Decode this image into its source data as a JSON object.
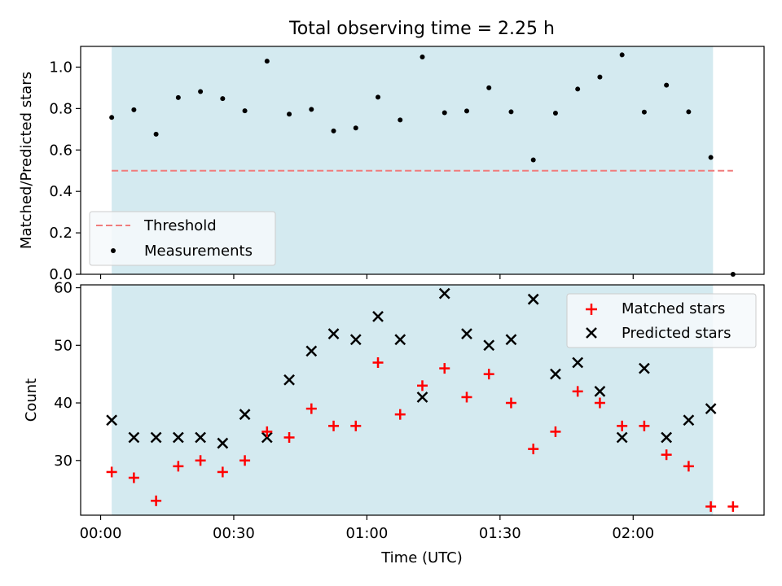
{
  "title": "Total observing time = 2.25 h",
  "colors": {
    "band": "#d4eaf0",
    "threshold": "#f07c7c",
    "matched": "#ff0000",
    "predicted": "#000000",
    "measurement": "#000000"
  },
  "chart_data": [
    {
      "type": "scatter",
      "panel": "top",
      "ylabel": "Matched/Predicted stars",
      "ylim": [
        0.0,
        1.1
      ],
      "yticks": [
        0.0,
        0.2,
        0.4,
        0.6,
        0.8,
        1.0
      ],
      "ytick_labels": [
        "0.0",
        "0.2",
        "0.4",
        "0.6",
        "0.8",
        "1.0"
      ],
      "x_unit": "minutes since 00:00 UTC",
      "xlim": [
        -4.5,
        149.5
      ],
      "shaded_span": [
        2.5,
        138
      ],
      "threshold": {
        "name": "Threshold",
        "value": 0.5,
        "x_range": [
          2.5,
          142.5
        ]
      },
      "series": [
        {
          "name": "Measurements",
          "x": [
            2.5,
            7.5,
            12.5,
            17.5,
            22.5,
            27.5,
            32.5,
            37.5,
            42.5,
            47.5,
            52.5,
            57.5,
            62.5,
            67.5,
            72.5,
            77.5,
            82.5,
            87.5,
            92.5,
            97.5,
            102.5,
            107.5,
            112.5,
            117.5,
            122.5,
            127.5,
            132.5,
            137.5,
            142.5
          ],
          "values": [
            0.757,
            0.794,
            0.676,
            0.853,
            0.882,
            0.848,
            0.789,
            1.029,
            0.773,
            0.796,
            0.692,
            0.706,
            0.855,
            0.745,
            1.049,
            0.78,
            0.788,
            0.9,
            0.784,
            0.552,
            0.778,
            0.894,
            0.952,
            1.059,
            0.783,
            0.913,
            0.784,
            0.564,
            0.0
          ]
        }
      ],
      "legend": {
        "placement": "lower-left",
        "entries": [
          "Threshold",
          "Measurements"
        ]
      }
    },
    {
      "type": "scatter",
      "panel": "bottom",
      "ylabel": "Count",
      "xlabel": "Time (UTC)",
      "ylim": [
        20.5,
        60.5
      ],
      "yticks": [
        30,
        40,
        50,
        60
      ],
      "ytick_labels": [
        "30",
        "40",
        "50",
        "60"
      ],
      "xlim": [
        -4.5,
        149.5
      ],
      "xticks": [
        0,
        30,
        60,
        90,
        120
      ],
      "xtick_labels": [
        "00:00",
        "00:30",
        "01:00",
        "01:30",
        "02:00"
      ],
      "shaded_span": [
        2.5,
        138
      ],
      "series": [
        {
          "name": "Matched stars",
          "marker": "+",
          "x": [
            2.5,
            7.5,
            12.5,
            17.5,
            22.5,
            27.5,
            32.5,
            37.5,
            42.5,
            47.5,
            52.5,
            57.5,
            62.5,
            67.5,
            72.5,
            77.5,
            82.5,
            87.5,
            92.5,
            97.5,
            102.5,
            107.5,
            112.5,
            117.5,
            122.5,
            127.5,
            132.5,
            137.5,
            142.5
          ],
          "values": [
            28,
            27,
            23,
            29,
            30,
            28,
            30,
            35,
            34,
            39,
            36,
            36,
            47,
            38,
            43,
            46,
            41,
            45,
            40,
            32,
            35,
            42,
            40,
            36,
            36,
            31,
            29,
            22,
            22
          ]
        },
        {
          "name": "Predicted stars",
          "marker": "x",
          "x": [
            2.5,
            7.5,
            12.5,
            17.5,
            22.5,
            27.5,
            32.5,
            37.5,
            42.5,
            47.5,
            52.5,
            57.5,
            62.5,
            67.5,
            72.5,
            77.5,
            82.5,
            87.5,
            92.5,
            97.5,
            102.5,
            107.5,
            112.5,
            117.5,
            122.5,
            127.5,
            132.5,
            137.5
          ],
          "values": [
            37,
            34,
            34,
            34,
            34,
            33,
            38,
            34,
            44,
            49,
            52,
            51,
            55,
            51,
            41,
            59,
            52,
            50,
            51,
            58,
            45,
            47,
            42,
            34,
            46,
            34,
            37,
            39
          ]
        }
      ],
      "legend": {
        "placement": "upper-right",
        "entries": [
          "Matched stars",
          "Predicted stars"
        ]
      }
    }
  ]
}
